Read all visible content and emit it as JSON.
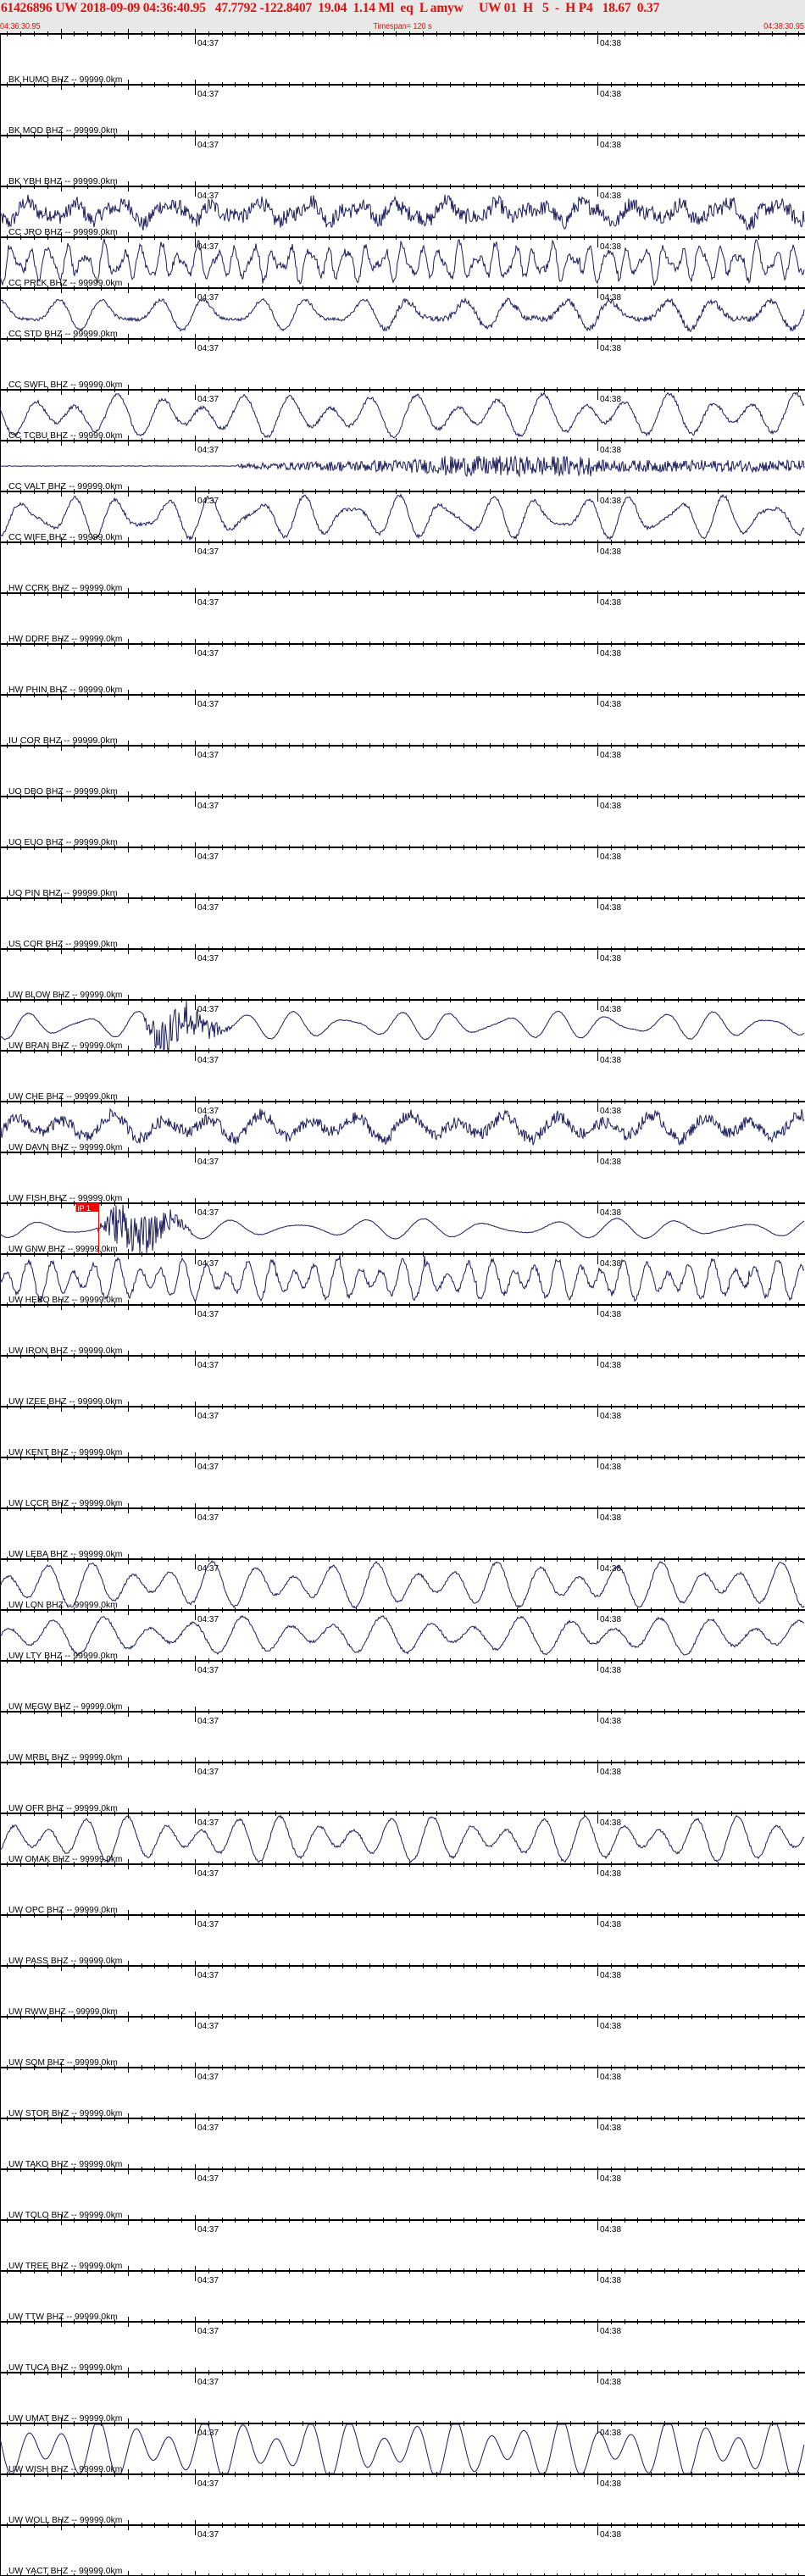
{
  "header": {
    "title": "61426896 UW 2018-09-09 04:36:40.95   47.7792 -122.8407  19.04  1.14 Ml  eq  L amyw     UW 01  H   5  -  H P4   18.67  0.37",
    "start_time": "04:36:30.95",
    "timespan": "Timespan= 120 s",
    "end_time": "04:38:30.95"
  },
  "colors": {
    "header_text": "#e01010",
    "header_bg": "#e8e8e8",
    "trace": "#1c1c5e",
    "pick": "#ff0000",
    "axis": "#000000"
  },
  "chart_data": {
    "type": "seismogram",
    "x_range_seconds": [
      0,
      120
    ],
    "start": "04:36:30.95",
    "end": "04:38:30.95",
    "major_tick_seconds": 10,
    "minor_tick_seconds": 2,
    "time_tick_labels": [
      {
        "label": "04:37",
        "seconds_from_start": 29.05
      },
      {
        "label": "04:38",
        "seconds_from_start": 89.05
      }
    ],
    "pick": {
      "station": "UW FISH BHZ",
      "label": "iP 1",
      "seconds_from_start": 14.7
    },
    "stations": [
      {
        "label": "BK HUMO BHZ -- 99999.0km",
        "trace_shown": false
      },
      {
        "label": "BK MOD BHZ -- 99999.0km",
        "trace_shown": false
      },
      {
        "label": "BK YBH BHZ -- 99999.0km",
        "trace_shown": true
      },
      {
        "label": "CC JRO BHZ -- 99999.0km",
        "trace_shown": true
      },
      {
        "label": "CC PRLK BHZ -- 99999.0km",
        "trace_shown": true
      },
      {
        "label": "CC STD BHZ -- 99999.0km",
        "trace_shown": false
      },
      {
        "label": "CC SWFL BHZ -- 99999.0km",
        "trace_shown": true
      },
      {
        "label": "CC TCBU BHZ -- 99999.0km",
        "trace_shown": true
      },
      {
        "label": "CC VALT BHZ -- 99999.0km",
        "trace_shown": true
      },
      {
        "label": "CC WIFE BHZ -- 99999.0km",
        "trace_shown": false
      },
      {
        "label": "HW CCRK BHZ -- 99999.0km",
        "trace_shown": false
      },
      {
        "label": "HW DDRF BHZ -- 99999.0km",
        "trace_shown": false
      },
      {
        "label": "HW PHIN BHZ -- 99999.0km",
        "trace_shown": false
      },
      {
        "label": "IU COR BHZ -- 99999.0km",
        "trace_shown": false
      },
      {
        "label": "UO DBO BHZ -- 99999.0km",
        "trace_shown": false
      },
      {
        "label": "UO EUO BHZ -- 99999.0km",
        "trace_shown": false
      },
      {
        "label": "UO PIN BHZ -- 99999.0km",
        "trace_shown": false
      },
      {
        "label": "US COR BHZ -- 99999.0km",
        "trace_shown": false
      },
      {
        "label": "UW BLOW BHZ -- 99999.0km",
        "trace_shown": true
      },
      {
        "label": "UW BRAN BHZ -- 99999.0km",
        "trace_shown": false
      },
      {
        "label": "UW CHE BHZ -- 99999.0km",
        "trace_shown": true
      },
      {
        "label": "UW DAVN BHZ -- 99999.0km",
        "trace_shown": false
      },
      {
        "label": "UW FISH BHZ -- 99999.0km",
        "trace_shown": true
      },
      {
        "label": "UW GNW BHZ -- 99999.0km",
        "trace_shown": true
      },
      {
        "label": "UW HEBO BHZ -- 99999.0km",
        "trace_shown": false
      },
      {
        "label": "UW IRON BHZ -- 99999.0km",
        "trace_shown": false
      },
      {
        "label": "UW IZEE BHZ -- 99999.0km",
        "trace_shown": false
      },
      {
        "label": "UW KENT BHZ -- 99999.0km",
        "trace_shown": false
      },
      {
        "label": "UW LCCR BHZ -- 99999.0km",
        "trace_shown": false
      },
      {
        "label": "UW LEBA BHZ -- 99999.0km",
        "trace_shown": true
      },
      {
        "label": "UW LON BHZ -- 99999.0km",
        "trace_shown": true
      },
      {
        "label": "UW LTY BHZ -- 99999.0km",
        "trace_shown": false
      },
      {
        "label": "UW MEGW BHZ -- 99999.0km",
        "trace_shown": false
      },
      {
        "label": "UW MRBL BHZ -- 99999.0km",
        "trace_shown": false
      },
      {
        "label": "UW OFR BHZ -- 99999.0km",
        "trace_shown": true
      },
      {
        "label": "UW OMAK BHZ -- 99999.0km",
        "trace_shown": false
      },
      {
        "label": "UW OPC BHZ -- 99999.0km",
        "trace_shown": false
      },
      {
        "label": "UW PASS BHZ -- 99999.0km",
        "trace_shown": false
      },
      {
        "label": "UW RWW BHZ -- 99999.0km",
        "trace_shown": false
      },
      {
        "label": "UW SQM BHZ -- 99999.0km",
        "trace_shown": false
      },
      {
        "label": "UW STOR BHZ -- 99999.0km",
        "trace_shown": false
      },
      {
        "label": "UW TAKO BHZ -- 99999.0km",
        "trace_shown": false
      },
      {
        "label": "UW TOLO BHZ -- 99999.0km",
        "trace_shown": false
      },
      {
        "label": "UW TREE BHZ -- 99999.0km",
        "trace_shown": false
      },
      {
        "label": "UW TTW BHZ -- 99999.0km",
        "trace_shown": false
      },
      {
        "label": "UW TUCA BHZ -- 99999.0km",
        "trace_shown": false
      },
      {
        "label": "UW UMAT BHZ -- 99999.0km",
        "trace_shown": true
      },
      {
        "label": "UW WISH BHZ -- 99999.0km",
        "trace_shown": false
      },
      {
        "label": "UW WOLL BHZ -- 99999.0km",
        "trace_shown": false
      },
      {
        "label": "UW YACT BHZ -- 99999.0km",
        "trace_shown": false
      }
    ]
  }
}
